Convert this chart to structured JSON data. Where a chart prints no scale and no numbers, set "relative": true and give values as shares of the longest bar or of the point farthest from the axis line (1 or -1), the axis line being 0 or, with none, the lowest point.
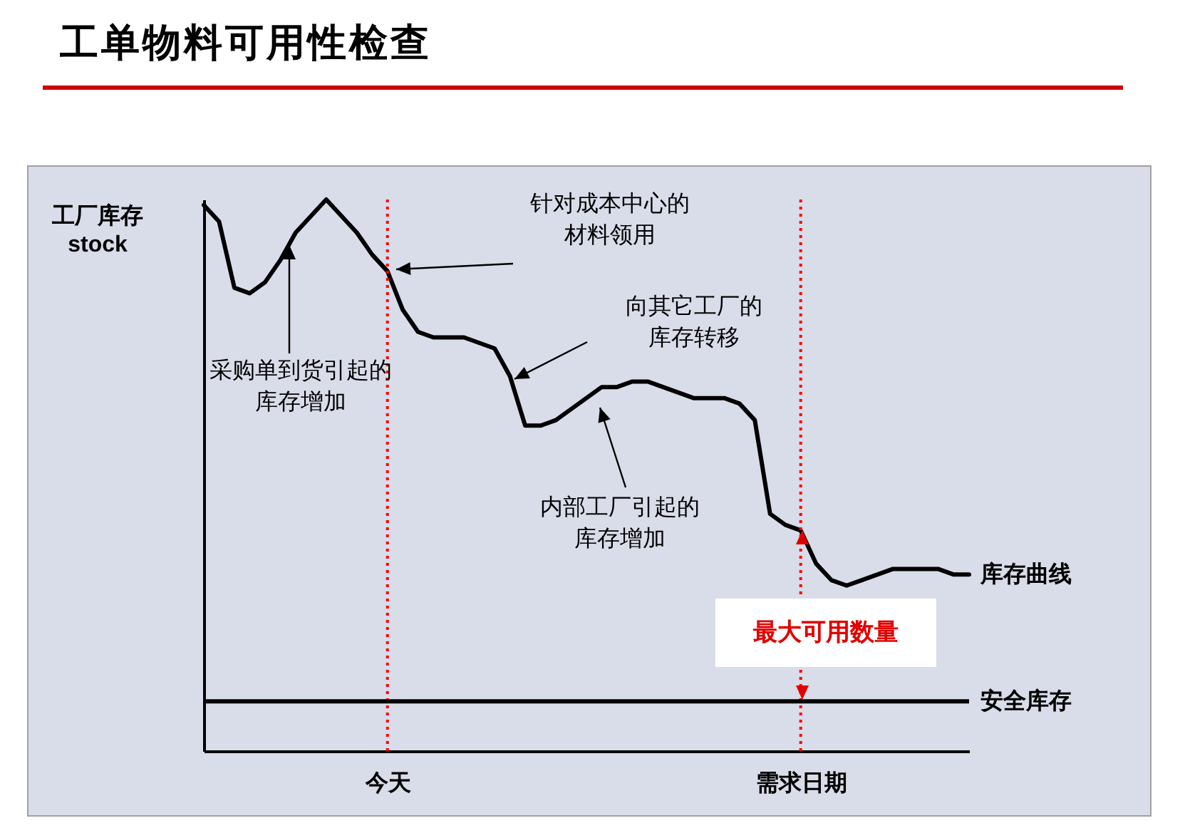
{
  "chart_data": {
    "type": "line",
    "title": "工单物料可用性检查",
    "ylabel": "工厂库存\nstock",
    "relative": true,
    "grid": false,
    "categories": [
      null,
      null,
      null,
      null,
      null,
      null,
      null,
      null,
      null,
      null,
      null,
      null,
      "今天",
      null,
      null,
      null,
      null,
      null,
      null,
      null,
      null,
      null,
      null,
      null,
      null,
      null,
      null,
      null,
      null,
      null,
      null,
      null,
      null,
      null,
      null,
      null,
      null,
      null,
      null,
      "需求日期",
      null,
      null,
      null,
      null,
      null,
      null,
      null,
      null,
      null,
      null,
      null
    ],
    "series": [
      {
        "name": "库存曲线",
        "color": "#000000",
        "line_style": "solid",
        "values": [
          0.99,
          0.96,
          0.84,
          0.83,
          0.85,
          0.89,
          0.94,
          0.97,
          1,
          0.97,
          0.94,
          0.9,
          0.87,
          0.8,
          0.76,
          0.75,
          0.75,
          0.75,
          0.74,
          0.73,
          0.68,
          0.59,
          0.59,
          0.6,
          0.62,
          0.64,
          0.66,
          0.66,
          0.67,
          0.67,
          0.66,
          0.65,
          0.64,
          0.64,
          0.64,
          0.63,
          0.6,
          0.43,
          0.41,
          0.4,
          0.34,
          0.31,
          0.3,
          0.31,
          0.32,
          0.33,
          0.33,
          0.33,
          0.33,
          0.32,
          0.32
        ]
      }
    ],
    "ref_lines": [
      {
        "axis": "x",
        "value": "今天",
        "color": "#ff0000",
        "line_style": "dotted"
      },
      {
        "axis": "x",
        "value": "需求日期",
        "color": "#ff0000",
        "line_style": "dotted"
      },
      {
        "axis": "y",
        "value": 0.09,
        "label": "安全库存",
        "color": "#000000",
        "line_style": "solid"
      }
    ],
    "annotations": [
      "针对成本中心的材料领用",
      "向其它工厂的库存转移",
      "采购单到货引起的库存增加",
      "内部工厂引起的库存增加",
      "最大可用数量"
    ]
  }
}
